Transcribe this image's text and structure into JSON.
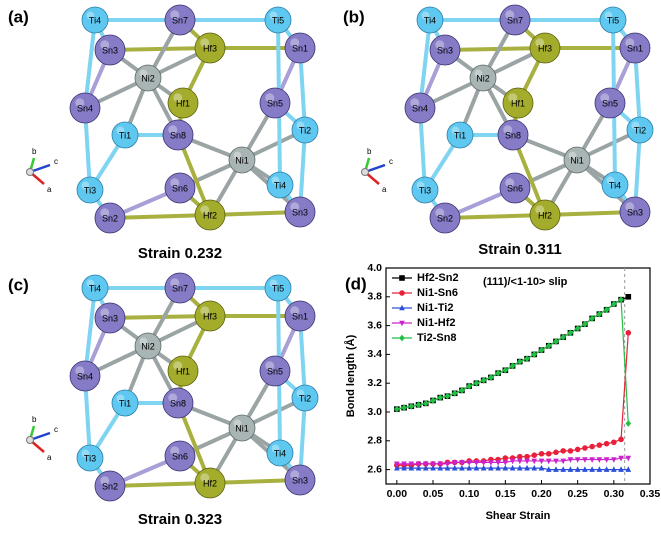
{
  "panels": [
    {
      "label": "(a)",
      "caption": "Strain 0.232",
      "axes": [
        "b",
        "c",
        "a"
      ],
      "atoms": [
        "Ti4",
        "Sn7",
        "Ti5",
        "Sn3",
        "Hf3",
        "Sn1",
        "Ni2",
        "Hf1",
        "Sn4",
        "Sn5",
        "Ti1",
        "Sn8",
        "Ti2",
        "Ni1",
        "Ti3",
        "Sn6",
        "Ti4",
        "Sn2",
        "Hf2",
        "Sn3"
      ]
    },
    {
      "label": "(b)",
      "caption": "Strain 0.311",
      "axes": [
        "b",
        "c",
        "a"
      ],
      "atoms": [
        "Ti4",
        "Sn7",
        "Ti5",
        "Sn3",
        "Hf3",
        "Sn1",
        "Ni2",
        "Hf1",
        "Sn4",
        "Sn5",
        "Ti1",
        "Sn8",
        "Ti2",
        "Ni1",
        "Ti3",
        "Sn6",
        "Ti4",
        "Sn2",
        "Hf2",
        "Sn3"
      ]
    },
    {
      "label": "(c)",
      "caption": "Strain 0.323",
      "axes": [
        "b",
        "c",
        "a"
      ],
      "atoms": [
        "Ti4",
        "Sn7",
        "Ti5",
        "Sn3",
        "Hf3",
        "Sn1",
        "Ni2",
        "Hf1",
        "Sn4",
        "Sn5",
        "Ti1",
        "Sn8",
        "Ti2",
        "Ni1",
        "Ti3",
        "Sn6",
        "Ti4",
        "Sn2",
        "Hf2",
        "Sn3"
      ]
    }
  ],
  "chart_data": {
    "type": "line",
    "panel_label": "(d)",
    "annotation": "(111)/<1-10> slip",
    "xlabel": "Shear Strain",
    "ylabel": "Bond length (Å)",
    "x": [
      0,
      0.01,
      0.02,
      0.03,
      0.04,
      0.05,
      0.06,
      0.07,
      0.08,
      0.09,
      0.1,
      0.11,
      0.12,
      0.13,
      0.14,
      0.15,
      0.16,
      0.17,
      0.18,
      0.19,
      0.2,
      0.21,
      0.22,
      0.23,
      0.24,
      0.25,
      0.26,
      0.27,
      0.28,
      0.29,
      0.3,
      0.31,
      0.32
    ],
    "series": [
      {
        "name": "Hf2-Sn2",
        "color": "#000000",
        "marker": "square",
        "values": [
          3.02,
          3.03,
          3.04,
          3.05,
          3.06,
          3.08,
          3.1,
          3.11,
          3.13,
          3.15,
          3.18,
          3.2,
          3.22,
          3.24,
          3.27,
          3.29,
          3.32,
          3.35,
          3.37,
          3.4,
          3.43,
          3.46,
          3.49,
          3.52,
          3.55,
          3.58,
          3.61,
          3.65,
          3.68,
          3.71,
          3.75,
          3.78,
          3.8
        ]
      },
      {
        "name": "Ni1-Sn6",
        "color": "#e8203a",
        "marker": "circle",
        "values": [
          2.63,
          2.63,
          2.63,
          2.64,
          2.64,
          2.64,
          2.64,
          2.65,
          2.65,
          2.65,
          2.66,
          2.66,
          2.66,
          2.67,
          2.67,
          2.68,
          2.68,
          2.69,
          2.69,
          2.7,
          2.71,
          2.71,
          2.72,
          2.73,
          2.73,
          2.74,
          2.75,
          2.76,
          2.77,
          2.78,
          2.79,
          2.81,
          3.55
        ]
      },
      {
        "name": "Ni1-Ti2",
        "color": "#2a4fd8",
        "marker": "triangle-up",
        "values": [
          2.61,
          2.61,
          2.61,
          2.61,
          2.61,
          2.61,
          2.61,
          2.61,
          2.61,
          2.61,
          2.61,
          2.61,
          2.61,
          2.61,
          2.61,
          2.61,
          2.61,
          2.61,
          2.61,
          2.61,
          2.61,
          2.6,
          2.6,
          2.6,
          2.6,
          2.6,
          2.6,
          2.6,
          2.6,
          2.6,
          2.6,
          2.6,
          2.6
        ]
      },
      {
        "name": "Ni1-Hf2",
        "color": "#cc22cc",
        "marker": "triangle-down",
        "values": [
          2.64,
          2.64,
          2.64,
          2.64,
          2.64,
          2.64,
          2.64,
          2.64,
          2.65,
          2.65,
          2.65,
          2.65,
          2.65,
          2.65,
          2.65,
          2.65,
          2.66,
          2.66,
          2.66,
          2.66,
          2.66,
          2.66,
          2.66,
          2.66,
          2.67,
          2.67,
          2.67,
          2.67,
          2.67,
          2.67,
          2.67,
          2.68,
          2.68
        ]
      },
      {
        "name": "Ti2-Sn8",
        "color": "#22c044",
        "marker": "diamond",
        "values": [
          3.02,
          3.03,
          3.04,
          3.05,
          3.06,
          3.08,
          3.1,
          3.11,
          3.13,
          3.15,
          3.18,
          3.2,
          3.22,
          3.24,
          3.27,
          3.29,
          3.32,
          3.35,
          3.37,
          3.4,
          3.43,
          3.46,
          3.49,
          3.52,
          3.55,
          3.58,
          3.61,
          3.65,
          3.68,
          3.71,
          3.75,
          3.78,
          2.92
        ]
      }
    ],
    "dashed_line_x": 0.315,
    "xlim": [
      -0.015,
      0.35
    ],
    "xticks": [
      {
        "value": 0,
        "label": "0.00"
      },
      {
        "value": 0.05,
        "label": "0.05"
      },
      {
        "value": 0.1,
        "label": "0.10"
      },
      {
        "value": 0.15,
        "label": "0.15"
      },
      {
        "value": 0.2,
        "label": "0.20"
      },
      {
        "value": 0.25,
        "label": "0.25"
      },
      {
        "value": 0.3,
        "label": "0.30"
      },
      {
        "value": 0.35,
        "label": "0.35"
      }
    ],
    "ylim": [
      2.5,
      4.0
    ],
    "yticks": [
      2.6,
      2.8,
      {
        "value": 3.0,
        "label": "3.0"
      },
      3.2,
      3.4,
      3.6,
      3.8,
      {
        "value": 4.0,
        "label": "4.0"
      }
    ],
    "legend": "upper left"
  }
}
